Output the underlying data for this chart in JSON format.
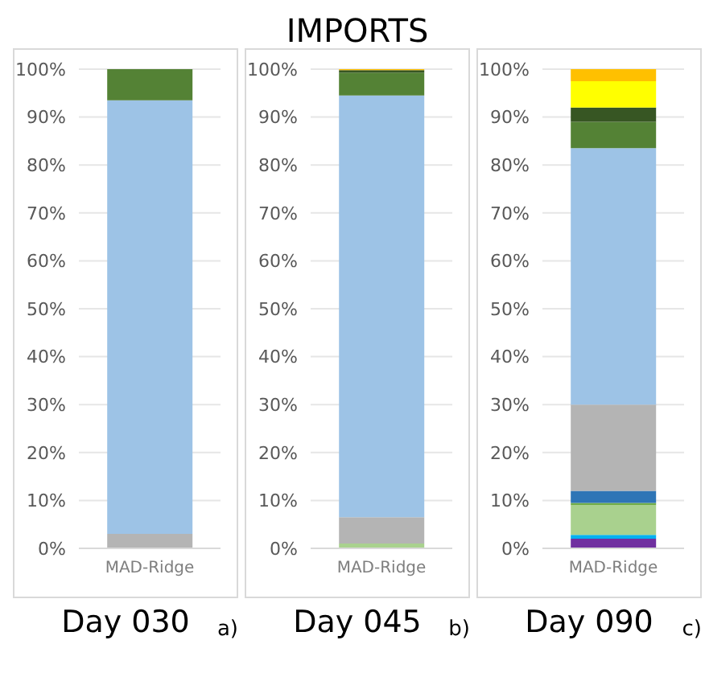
{
  "chart_data": [
    {
      "type": "bar",
      "stacked": true,
      "categories": [
        "MAD-Ridge"
      ],
      "xlabel": "Day 030",
      "annotations": [
        "a)"
      ],
      "ylim": [
        0,
        100
      ],
      "yticks": [
        {
          "value": 0,
          "label": "0%"
        },
        {
          "value": 10,
          "label": "10%"
        },
        {
          "value": 20,
          "label": "20%"
        },
        {
          "value": 30,
          "label": "30%"
        },
        {
          "value": 40,
          "label": "40%"
        },
        {
          "value": 50,
          "label": "50%"
        },
        {
          "value": 60,
          "label": "60%"
        },
        {
          "value": 70,
          "label": "70%"
        },
        {
          "value": 80,
          "label": "80%"
        },
        {
          "value": 90,
          "label": "90%"
        },
        {
          "value": 100,
          "label": "100%"
        }
      ],
      "grid": "y",
      "legend": false,
      "series": [
        {
          "color": "#b4b4b4",
          "values": [
            3
          ]
        },
        {
          "color": "#9dc3e6",
          "values": [
            90.5
          ]
        },
        {
          "color": "#548235",
          "values": [
            6.5
          ]
        }
      ]
    },
    {
      "type": "bar",
      "stacked": true,
      "title": "IMPORTS",
      "categories": [
        "MAD-Ridge"
      ],
      "xlabel": "Day 045",
      "annotations": [
        "b)"
      ],
      "ylim": [
        0,
        100
      ],
      "yticks": [
        {
          "value": 0,
          "label": "0%"
        },
        {
          "value": 10,
          "label": "10%"
        },
        {
          "value": 20,
          "label": "20%"
        },
        {
          "value": 30,
          "label": "30%"
        },
        {
          "value": 40,
          "label": "40%"
        },
        {
          "value": 50,
          "label": "50%"
        },
        {
          "value": 60,
          "label": "60%"
        },
        {
          "value": 70,
          "label": "70%"
        },
        {
          "value": 80,
          "label": "80%"
        },
        {
          "value": 90,
          "label": "90%"
        },
        {
          "value": 100,
          "label": "100%"
        }
      ],
      "grid": "y",
      "legend": false,
      "series": [
        {
          "color": "#a9d18e",
          "values": [
            1
          ]
        },
        {
          "color": "#b4b4b4",
          "values": [
            5.5
          ]
        },
        {
          "color": "#9dc3e6",
          "values": [
            88
          ]
        },
        {
          "color": "#548235",
          "values": [
            4.8
          ]
        },
        {
          "color": "#375623",
          "values": [
            0.5
          ]
        },
        {
          "color": "#ffc000",
          "values": [
            0.2
          ]
        }
      ]
    },
    {
      "type": "bar",
      "stacked": true,
      "categories": [
        "MAD-Ridge"
      ],
      "xlabel": "Day 090",
      "annotations": [
        "c)"
      ],
      "ylim": [
        0,
        100
      ],
      "yticks": [
        {
          "value": 0,
          "label": "0%"
        },
        {
          "value": 10,
          "label": "10%"
        },
        {
          "value": 20,
          "label": "20%"
        },
        {
          "value": 30,
          "label": "30%"
        },
        {
          "value": 40,
          "label": "40%"
        },
        {
          "value": 50,
          "label": "50%"
        },
        {
          "value": 60,
          "label": "60%"
        },
        {
          "value": 70,
          "label": "70%"
        },
        {
          "value": 80,
          "label": "80%"
        },
        {
          "value": 90,
          "label": "90%"
        },
        {
          "value": 100,
          "label": "100%"
        }
      ],
      "grid": "y",
      "legend": false,
      "series": [
        {
          "color": "#7030a0",
          "values": [
            2
          ]
        },
        {
          "color": "#00b0f0",
          "values": [
            0.8
          ]
        },
        {
          "color": "#a9d18e",
          "values": [
            6.2
          ]
        },
        {
          "color": "#70ad47",
          "values": [
            0.5
          ]
        },
        {
          "color": "#2e75b6",
          "values": [
            2.5
          ]
        },
        {
          "color": "#b4b4b4",
          "values": [
            18
          ]
        },
        {
          "color": "#9dc3e6",
          "values": [
            53.5
          ]
        },
        {
          "color": "#548235",
          "values": [
            5.5
          ]
        },
        {
          "color": "#375623",
          "values": [
            3
          ]
        },
        {
          "color": "#ffff00",
          "values": [
            5.5
          ]
        },
        {
          "color": "#ffc000",
          "values": [
            2.5
          ]
        }
      ]
    }
  ]
}
